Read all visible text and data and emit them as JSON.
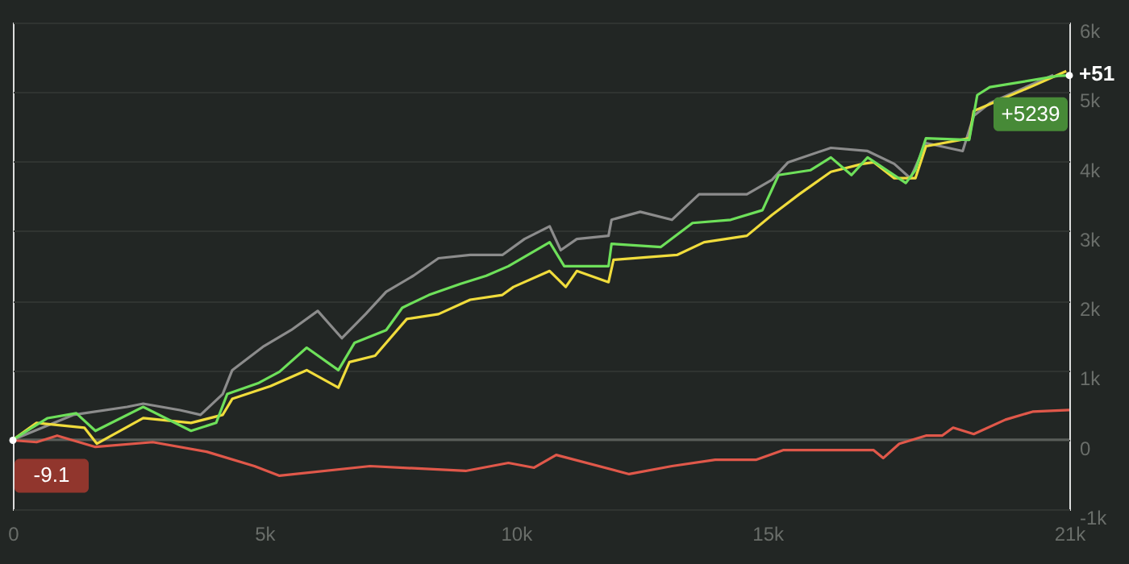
{
  "chart_data": {
    "type": "line",
    "xlim": [
      0,
      21000
    ],
    "ylim": [
      -1000,
      6000
    ],
    "xticks": [
      0,
      {
        "value": 5000,
        "label": "5k"
      },
      {
        "value": 10000,
        "label": "10k"
      },
      {
        "value": 15000,
        "label": "15k"
      },
      {
        "value": 21000,
        "label": "21k"
      }
    ],
    "yticks": [
      {
        "value": -1000,
        "label": "-1k"
      },
      0,
      {
        "value": 1000,
        "label": "1k"
      },
      {
        "value": 2000,
        "label": "2k"
      },
      {
        "value": 3000,
        "label": "3k"
      },
      {
        "value": 4000,
        "label": "4k"
      },
      {
        "value": 5000,
        "label": "5k"
      },
      {
        "value": 6000,
        "label": "6k"
      }
    ],
    "grid": "y",
    "marker": "none",
    "line_style": "solid",
    "ref_lines": [
      {
        "axis": "y",
        "value": 0,
        "color": "#5a5e5a"
      }
    ],
    "annotations": [
      {
        "text": "+5239",
        "x": 21000,
        "y": 5239
      },
      {
        "text": "-9.1",
        "x": 0,
        "y": -9.1
      },
      "+51"
    ],
    "series": [
      {
        "color": "#e0584a",
        "x": [
          0,
          470,
          880,
          1640,
          2780,
          3850,
          4800,
          5300,
          7100,
          9000,
          9850,
          10360,
          10800,
          12250,
          13100,
          13960,
          14780,
          15310,
          16260,
          17110,
          17300,
          17620,
          18150,
          18470,
          18690,
          19100,
          19730,
          20270,
          21000
        ],
        "values": [
          -9.1,
          -35,
          58,
          -104,
          -35,
          -173,
          -380,
          -518,
          -380,
          -449,
          -334,
          -403,
          -219,
          -495,
          -380,
          -288,
          -288,
          -150,
          -150,
          -150,
          -265,
          -58,
          58,
          58,
          173,
          81,
          288,
          403,
          426
        ]
      },
      {
        "color": "#8c8c8c",
        "x": [
          0,
          1200,
          2270,
          2590,
          3320,
          3730,
          4170,
          4360,
          4990,
          5530,
          6060,
          6540,
          7010,
          7420,
          7960,
          8460,
          9090,
          9730,
          10170,
          10670,
          10890,
          11210,
          11840,
          11900,
          12470,
          13100,
          13640,
          14590,
          15090,
          15410,
          16260,
          16990,
          17520,
          17840,
          18150,
          18880,
          19100,
          19420,
          20680
        ],
        "values": [
          0,
          357,
          472,
          518,
          426,
          357,
          656,
          1000,
          1346,
          1576,
          1852,
          1460,
          1806,
          2128,
          2358,
          2610,
          2657,
          2657,
          2887,
          3070,
          2726,
          2887,
          2933,
          3163,
          3278,
          3163,
          3530,
          3530,
          3738,
          3990,
          4198,
          4152,
          3968,
          3760,
          4267,
          4152,
          4658,
          4842,
          5245
        ]
      },
      {
        "color": "#f0dc3c",
        "x": [
          0,
          470,
          1420,
          1670,
          2590,
          3540,
          4170,
          4360,
          5120,
          5840,
          6470,
          6690,
          7200,
          7830,
          8460,
          9090,
          9730,
          9950,
          10670,
          10990,
          11210,
          11840,
          11940,
          13200,
          13740,
          14590,
          15090,
          15630,
          16260,
          16890,
          17110,
          17520,
          17940,
          18150,
          19010,
          19100,
          20370,
          20940
        ],
        "values": [
          0,
          242,
          173,
          -58,
          310,
          242,
          357,
          587,
          771,
          1000,
          748,
          1116,
          1208,
          1737,
          1806,
          2013,
          2082,
          2197,
          2427,
          2197,
          2427,
          2266,
          2588,
          2657,
          2841,
          2933,
          3232,
          3530,
          3853,
          3968,
          3991,
          3761,
          3761,
          4221,
          4336,
          4727,
          5118,
          5302
        ]
      },
      {
        "color": "#6ee05a",
        "x": [
          0,
          690,
          1260,
          1640,
          2590,
          3540,
          4040,
          4260,
          4890,
          5300,
          5840,
          6470,
          6790,
          7420,
          7740,
          8270,
          8900,
          9410,
          9850,
          10670,
          10960,
          11840,
          11900,
          12880,
          13510,
          14270,
          14900,
          15220,
          15850,
          16260,
          16670,
          16990,
          17750,
          17940,
          18150,
          19010,
          19170,
          19420,
          20780,
          21000
        ],
        "values": [
          0,
          310,
          380,
          127,
          472,
          127,
          242,
          656,
          817,
          978,
          1323,
          1000,
          1392,
          1576,
          1898,
          2082,
          2243,
          2358,
          2496,
          2841,
          2496,
          2496,
          2818,
          2772,
          3117,
          3163,
          3301,
          3807,
          3876,
          4060,
          3807,
          4060,
          3692,
          3876,
          4336,
          4313,
          4957,
          5072,
          5233,
          5239
        ]
      }
    ]
  }
}
